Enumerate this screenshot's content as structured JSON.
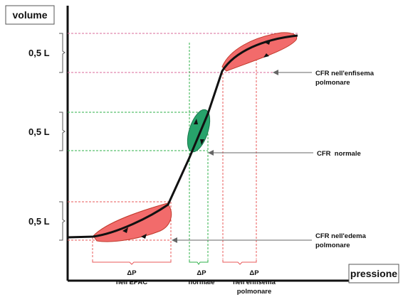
{
  "axes": {
    "y_label": "volume",
    "x_label": "pressione"
  },
  "volume_labels": [
    "0,5 L",
    "0,5 L",
    "0,5 L"
  ],
  "annotations": {
    "enfisema": [
      "CFR nell'enfisema",
      "polmonare"
    ],
    "normale": [
      "CFR  normale"
    ],
    "edema": [
      "CFR nell'edema",
      "polmonare"
    ]
  },
  "delta_labels": {
    "epac": [
      "ΔP",
      "nell'EPAC"
    ],
    "normale": [
      "ΔP",
      "normale"
    ],
    "enfisema": [
      "ΔP",
      "nell'enfisema",
      "polmonare"
    ]
  },
  "colors": {
    "loop_red": "#f26b6b",
    "loop_red_stroke": "#c0392b",
    "loop_green": "#27a36b",
    "dash_red": "#e8585a",
    "dash_green": "#2fb04a",
    "dash_pink": "#d86a9a"
  }
}
